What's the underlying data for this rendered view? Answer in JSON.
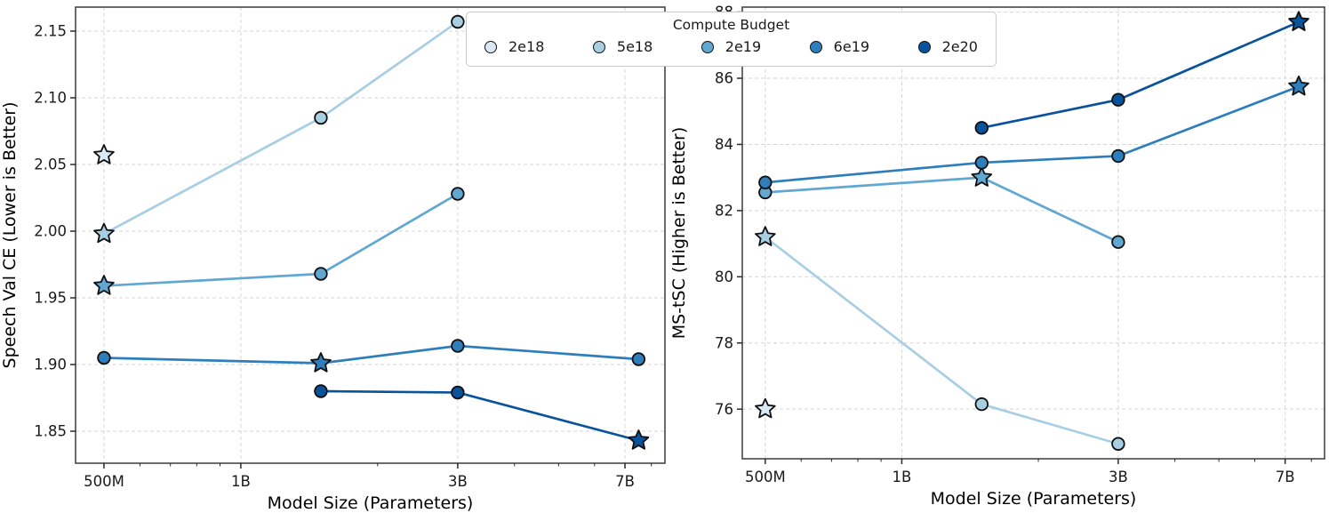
{
  "figure": {
    "legend": {
      "title": "Compute Budget",
      "entries": [
        {
          "label": "2e18",
          "color": "#dbe9f6"
        },
        {
          "label": "5e18",
          "color": "#a8cee4"
        },
        {
          "label": "2e19",
          "color": "#60a7d2"
        },
        {
          "label": "6e19",
          "color": "#2e7ebc"
        },
        {
          "label": "2e20",
          "color": "#09529c"
        }
      ]
    }
  },
  "chart_data": [
    {
      "type": "line",
      "panel": "left",
      "xlabel": "Model Size (Parameters)",
      "ylabel": "Speech Val CE (Lower is Better)",
      "x_scale": "log",
      "grid": true,
      "legend_position": "top-center-shared",
      "xlim_billions": [
        0.433,
        8.57
      ],
      "ylim": [
        1.826,
        2.168
      ],
      "yticks": [
        1.85,
        1.9,
        1.95,
        2.0,
        2.05,
        2.1,
        2.15
      ],
      "ytick_labels": [
        "1.85",
        "1.90",
        "1.95",
        "2.00",
        "2.05",
        "2.10",
        "2.15"
      ],
      "xticks_billions": [
        0.5,
        1,
        3,
        7
      ],
      "xtick_labels": [
        "500M",
        "1B",
        "3B",
        "7B"
      ],
      "x_minor_ticks_billions": [
        0.6,
        0.7,
        0.8,
        0.9,
        2,
        4,
        5,
        6,
        8
      ],
      "series": [
        {
          "name": "2e18",
          "color": "#dbe9f6",
          "points": [
            {
              "x_billions": 0.5,
              "y": 2.057,
              "marker": "star"
            }
          ]
        },
        {
          "name": "5e18",
          "color": "#a8cee4",
          "points": [
            {
              "x_billions": 0.5,
              "y": 1.998,
              "marker": "star"
            },
            {
              "x_billions": 1.5,
              "y": 2.085,
              "marker": "circle"
            },
            {
              "x_billions": 3,
              "y": 2.157,
              "marker": "circle"
            }
          ]
        },
        {
          "name": "2e19",
          "color": "#60a7d2",
          "points": [
            {
              "x_billions": 0.5,
              "y": 1.959,
              "marker": "star"
            },
            {
              "x_billions": 1.5,
              "y": 1.968,
              "marker": "circle"
            },
            {
              "x_billions": 3,
              "y": 2.028,
              "marker": "circle"
            }
          ]
        },
        {
          "name": "6e19",
          "color": "#2e7ebc",
          "points": [
            {
              "x_billions": 0.5,
              "y": 1.905,
              "marker": "circle"
            },
            {
              "x_billions": 1.5,
              "y": 1.901,
              "marker": "star"
            },
            {
              "x_billions": 3,
              "y": 1.914,
              "marker": "circle"
            },
            {
              "x_billions": 7.5,
              "y": 1.904,
              "marker": "circle"
            }
          ]
        },
        {
          "name": "2e20",
          "color": "#09529c",
          "points": [
            {
              "x_billions": 1.5,
              "y": 1.88,
              "marker": "circle"
            },
            {
              "x_billions": 3,
              "y": 1.879,
              "marker": "circle"
            },
            {
              "x_billions": 7.5,
              "y": 1.843,
              "marker": "star"
            }
          ]
        }
      ]
    },
    {
      "type": "line",
      "panel": "right",
      "xlabel": "Model Size (Parameters)",
      "ylabel": "MS-tSC (Higher is Better)",
      "x_scale": "log",
      "grid": true,
      "legend_position": "top-center-shared",
      "xlim_billions": [
        0.445,
        8.55
      ],
      "ylim": [
        74.5,
        88.15
      ],
      "yticks": [
        76,
        78,
        80,
        82,
        84,
        86,
        88
      ],
      "ytick_labels": [
        "76",
        "78",
        "80",
        "82",
        "84",
        "86",
        "88"
      ],
      "xticks_billions": [
        0.5,
        1,
        3,
        7
      ],
      "xtick_labels": [
        "500M",
        "1B",
        "3B",
        "7B"
      ],
      "x_minor_ticks_billions": [
        0.6,
        0.7,
        0.8,
        0.9,
        2,
        4,
        5,
        6,
        8
      ],
      "series": [
        {
          "name": "2e18",
          "color": "#dbe9f6",
          "points": [
            {
              "x_billions": 0.5,
              "y": 76.0,
              "marker": "star"
            }
          ]
        },
        {
          "name": "5e18",
          "color": "#a8cee4",
          "points": [
            {
              "x_billions": 0.5,
              "y": 81.2,
              "marker": "star"
            },
            {
              "x_billions": 1.5,
              "y": 76.15,
              "marker": "circle"
            },
            {
              "x_billions": 3,
              "y": 74.95,
              "marker": "circle"
            }
          ]
        },
        {
          "name": "2e19",
          "color": "#60a7d2",
          "points": [
            {
              "x_billions": 0.5,
              "y": 82.55,
              "marker": "circle"
            },
            {
              "x_billions": 1.5,
              "y": 83.0,
              "marker": "star"
            },
            {
              "x_billions": 3,
              "y": 81.05,
              "marker": "circle"
            }
          ]
        },
        {
          "name": "6e19",
          "color": "#2e7ebc",
          "points": [
            {
              "x_billions": 0.5,
              "y": 82.85,
              "marker": "circle"
            },
            {
              "x_billions": 1.5,
              "y": 83.45,
              "marker": "circle"
            },
            {
              "x_billions": 3,
              "y": 83.65,
              "marker": "circle"
            },
            {
              "x_billions": 7.5,
              "y": 85.75,
              "marker": "star"
            }
          ]
        },
        {
          "name": "2e20",
          "color": "#09529c",
          "points": [
            {
              "x_billions": 1.5,
              "y": 84.5,
              "marker": "circle"
            },
            {
              "x_billions": 3,
              "y": 85.35,
              "marker": "circle"
            },
            {
              "x_billions": 7.5,
              "y": 87.7,
              "marker": "star"
            }
          ]
        }
      ]
    }
  ]
}
